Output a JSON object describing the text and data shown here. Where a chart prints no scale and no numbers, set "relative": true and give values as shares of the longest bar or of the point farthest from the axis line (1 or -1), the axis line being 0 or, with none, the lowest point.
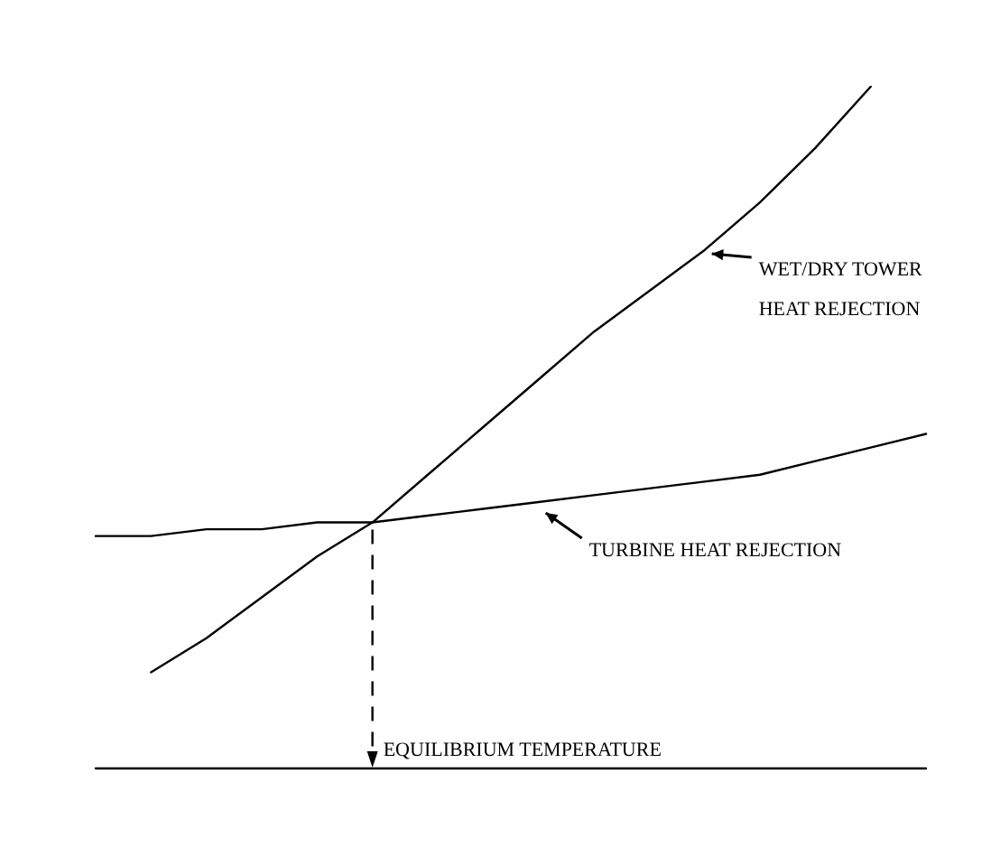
{
  "chart_data": {
    "type": "line",
    "relative": true,
    "categories": [
      null,
      null,
      null,
      null,
      null,
      null,
      null,
      null,
      null,
      null,
      null,
      null,
      null,
      null,
      null,
      null
    ],
    "series": [
      {
        "name": "WET/DRY TOWER HEAT REJECTION",
        "color": "#000000",
        "values": [
          null,
          0.14,
          0.19,
          0.25,
          0.31,
          0.36,
          0.43,
          0.5,
          0.57,
          0.64,
          0.7,
          0.76,
          0.83,
          0.91,
          1,
          null
        ]
      },
      {
        "name": "TURBINE HEAT REJECTION",
        "color": "#000000",
        "values": [
          0.34,
          0.34,
          0.35,
          0.35,
          0.36,
          0.36,
          0.37,
          0.38,
          0.39,
          0.4,
          0.41,
          0.42,
          0.43,
          0.45,
          0.47,
          0.49
        ]
      }
    ],
    "annotations": [
      "EQUILIBRIUM TEMPERATURE"
    ],
    "marker": "none",
    "line_style": "solid",
    "grid": false,
    "legend": false
  }
}
